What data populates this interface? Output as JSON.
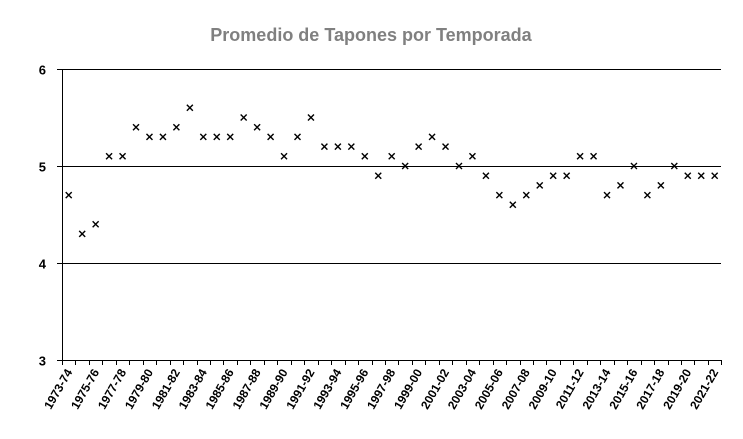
{
  "chart_data": {
    "type": "scatter",
    "title": "Promedio de Tapones por Temporada",
    "xlabel": "",
    "ylabel": "",
    "ylim": [
      3,
      6
    ],
    "yticks": [
      3,
      4,
      5,
      6
    ],
    "grid": true,
    "marker": "x",
    "marker_color": "#000000",
    "title_color": "#808080",
    "categories": [
      "1973-74",
      "1974-75",
      "1975-76",
      "1976-77",
      "1977-78",
      "1978-79",
      "1979-80",
      "1980-81",
      "1981-82",
      "1982-83",
      "1983-84",
      "1984-85",
      "1985-86",
      "1986-87",
      "1987-88",
      "1988-89",
      "1989-90",
      "1990-91",
      "1991-92",
      "1992-93",
      "1993-94",
      "1994-95",
      "1995-96",
      "1996-97",
      "1997-98",
      "1998-99",
      "1999-00",
      "2000-01",
      "2001-02",
      "2002-03",
      "2003-04",
      "2004-05",
      "2005-06",
      "2006-07",
      "2007-08",
      "2008-09",
      "2009-10",
      "2010-11",
      "2011-12",
      "2012-13",
      "2013-14",
      "2014-15",
      "2015-16",
      "2016-17",
      "2017-18",
      "2018-19",
      "2019-20",
      "2020-21",
      "2021-22"
    ],
    "tick_labels": [
      "1973-74",
      "1975-76",
      "1977-78",
      "1979-80",
      "1981-82",
      "1983-84",
      "1985-86",
      "1987-88",
      "1989-90",
      "1991-92",
      "1993-94",
      "1995-96",
      "1997-98",
      "1999-00",
      "2001-02",
      "2003-04",
      "2005-06",
      "2007-08",
      "2009-10",
      "2011-12",
      "2013-14",
      "2015-16",
      "2017-18",
      "2019-20",
      "2021-22"
    ],
    "values": [
      4.7,
      4.3,
      4.4,
      5.1,
      5.1,
      5.4,
      5.3,
      5.3,
      5.4,
      5.6,
      5.3,
      5.3,
      5.3,
      5.5,
      5.4,
      5.3,
      5.1,
      5.3,
      5.5,
      5.2,
      5.2,
      5.2,
      5.1,
      4.9,
      5.1,
      5.0,
      5.2,
      5.3,
      5.2,
      5.0,
      5.1,
      4.9,
      4.7,
      4.6,
      4.7,
      4.8,
      4.9,
      4.9,
      5.1,
      5.1,
      4.7,
      4.8,
      5.0,
      4.7,
      4.8,
      5.0,
      4.9,
      4.9,
      4.9
    ]
  }
}
